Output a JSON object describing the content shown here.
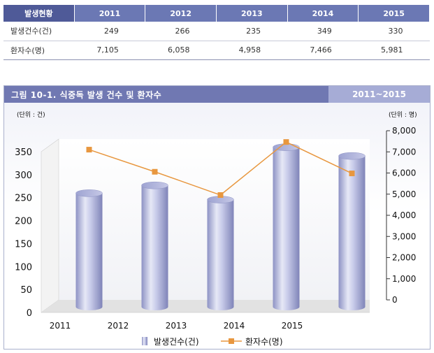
{
  "table": {
    "corner_label": "발생현황",
    "years": [
      "2011",
      "2012",
      "2013",
      "2014",
      "2015"
    ],
    "rows": [
      {
        "label": "발생건수(건)",
        "values": [
          "249",
          "266",
          "235",
          "349",
          "330"
        ]
      },
      {
        "label": "환자수(명)",
        "values": [
          "7,105",
          "6,058",
          "4,958",
          "7,466",
          "5,981"
        ]
      }
    ]
  },
  "figure": {
    "title": "그림 10-1. 식중독 발생 건수 및 환자수",
    "period": "2011~2015"
  },
  "chart_data": {
    "type": "bar",
    "categories": [
      "2011",
      "2012",
      "2013",
      "2014",
      "2015"
    ],
    "series": [
      {
        "name": "발생건수(건)",
        "kind": "cylinder-bar",
        "axis": "left",
        "values": [
          249,
          266,
          235,
          349,
          330
        ]
      },
      {
        "name": "환자수(명)",
        "kind": "line",
        "axis": "right",
        "values": [
          7105,
          6058,
          4958,
          7466,
          5981
        ]
      }
    ],
    "left_axis": {
      "unit_label": "(단위 : 건)",
      "min": 0,
      "max": 350,
      "ticks": [
        "0",
        "50",
        "100",
        "150",
        "200",
        "250",
        "300",
        "350"
      ]
    },
    "right_axis": {
      "unit_label": "(단위 : 명)",
      "min": 0,
      "max": 8000,
      "ticks": [
        "0",
        "1,000",
        "2,000",
        "3,000",
        "4,000",
        "5,000",
        "6,000",
        "7,000",
        "8,000"
      ]
    },
    "grid": false,
    "legend_position": "bottom",
    "colors": {
      "bar": "#b5b9dc",
      "line": "#e8973f",
      "header": "#7078b2",
      "header_accent": "#a6acd6"
    }
  }
}
